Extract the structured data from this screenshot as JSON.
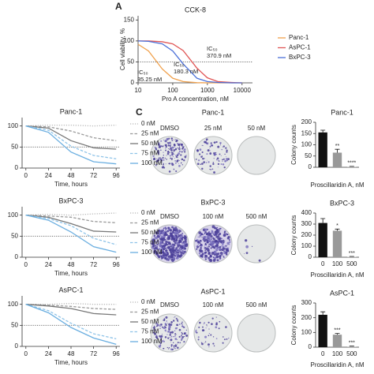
{
  "panel_labels": [
    "A",
    "C"
  ],
  "chart_data": [
    {
      "type": "line",
      "title": "CCK-8",
      "xlabel": "Pro A concentration, nM",
      "ylabel": "Cell viability, %",
      "xscale": "log",
      "x": [
        10,
        20,
        50,
        100,
        200,
        500,
        1000,
        2000,
        5000,
        10000
      ],
      "xlim": [
        10,
        20000
      ],
      "xticks": [
        10,
        100,
        1000,
        10000
      ],
      "ylim": [
        0,
        160
      ],
      "yticks": [
        0,
        50,
        100,
        150
      ],
      "reference_line": 50,
      "legend": "upper right",
      "series": [
        {
          "name": "Panc-1",
          "color": "#f0a04b",
          "style": "solid",
          "values": [
            92,
            76,
            33,
            11,
            3,
            0.5,
            0,
            0,
            0,
            0
          ]
        },
        {
          "name": "AsPC-1",
          "color": "#e05555",
          "style": "solid",
          "values": [
            100,
            100,
            98,
            93,
            77,
            35,
            12,
            3,
            1,
            0
          ]
        },
        {
          "name": "BxPC-3",
          "color": "#4a6fd8",
          "style": "solid",
          "values": [
            100,
            99,
            93,
            76,
            45,
            11,
            3,
            1,
            0,
            0
          ]
        }
      ],
      "annotations": [
        {
          "lines": [
            "IC₅₀",
            "370.9 nM"
          ],
          "color": "#e05555"
        },
        {
          "lines": [
            "IC₅₀",
            "180.3 nM"
          ],
          "color": "#4a6fd8"
        },
        {
          "lines": [
            "IC₅₀",
            "35.25 nM"
          ],
          "color": "#f0a04b"
        }
      ]
    },
    {
      "type": "line",
      "title": "Panc-1",
      "xlabel": "Time, hours",
      "x": [
        0,
        24,
        48,
        72,
        96
      ],
      "xlim": [
        -4,
        100
      ],
      "xticks": [
        0,
        24,
        48,
        72,
        96
      ],
      "ylim": [
        0,
        120
      ],
      "yticks": [
        0,
        50,
        100
      ],
      "reference_line": 50,
      "legend": "right",
      "series": [
        {
          "name": "0 nM",
          "color": "#b8b8b8",
          "style": "dotted",
          "values": [
            100,
            102,
            102,
            100,
            102
          ]
        },
        {
          "name": "25 nM",
          "color": "#9a9a9a",
          "style": "dashed",
          "values": [
            100,
            98,
            88,
            72,
            65
          ]
        },
        {
          "name": "50 nM",
          "color": "#777777",
          "style": "solid",
          "values": [
            100,
            95,
            65,
            48,
            45
          ]
        },
        {
          "name": "75 nM",
          "color": "#8ec3e8",
          "style": "dashed",
          "values": [
            100,
            90,
            52,
            30,
            22
          ]
        },
        {
          "name": "100 nM",
          "color": "#6aaee0",
          "style": "solid",
          "values": [
            100,
            85,
            38,
            15,
            10
          ]
        }
      ]
    },
    {
      "type": "line",
      "title": "BxPC-3",
      "xlabel": "Time, hours",
      "x": [
        0,
        24,
        48,
        72,
        96
      ],
      "xlim": [
        -4,
        100
      ],
      "xticks": [
        0,
        24,
        48,
        72,
        96
      ],
      "ylim": [
        0,
        120
      ],
      "yticks": [
        0,
        50,
        100
      ],
      "reference_line": 50,
      "legend": "right",
      "series": [
        {
          "name": "0 nM",
          "color": "#b8b8b8",
          "style": "dotted",
          "values": [
            100,
            102,
            100,
            103,
            105
          ]
        },
        {
          "name": "25 nM",
          "color": "#9a9a9a",
          "style": "dashed",
          "values": [
            100,
            98,
            95,
            85,
            82
          ]
        },
        {
          "name": "50 nM",
          "color": "#777777",
          "style": "solid",
          "values": [
            100,
            95,
            80,
            62,
            60
          ]
        },
        {
          "name": "75 nM",
          "color": "#8ec3e8",
          "style": "dashed",
          "values": [
            100,
            92,
            75,
            45,
            30
          ]
        },
        {
          "name": "100 nM",
          "color": "#6aaee0",
          "style": "solid",
          "values": [
            100,
            88,
            60,
            25,
            12
          ]
        }
      ]
    },
    {
      "type": "line",
      "title": "AsPC-1",
      "xlabel": "Time, hours",
      "x": [
        0,
        24,
        48,
        72,
        96
      ],
      "xlim": [
        -4,
        100
      ],
      "xticks": [
        0,
        24,
        48,
        72,
        96
      ],
      "ylim": [
        0,
        120
      ],
      "yticks": [
        0,
        50,
        100
      ],
      "reference_line": 50,
      "legend": "right",
      "series": [
        {
          "name": "0 nM",
          "color": "#b8b8b8",
          "style": "dotted",
          "values": [
            100,
            100,
            102,
            100,
            100
          ]
        },
        {
          "name": "25 nM",
          "color": "#9a9a9a",
          "style": "dashed",
          "values": [
            100,
            98,
            95,
            90,
            88
          ]
        },
        {
          "name": "50 nM",
          "color": "#777777",
          "style": "solid",
          "values": [
            100,
            96,
            90,
            78,
            75
          ]
        },
        {
          "name": "75 nM",
          "color": "#8ec3e8",
          "style": "dashed",
          "values": [
            100,
            85,
            55,
            30,
            18
          ]
        },
        {
          "name": "100 nM",
          "color": "#6aaee0",
          "style": "solid",
          "values": [
            100,
            80,
            45,
            20,
            5
          ]
        }
      ]
    },
    {
      "type": "bar",
      "title": "Panc-1",
      "xlabel": "Proscillaridin A, nM",
      "ylabel": "Colony counts",
      "values": [
        155,
        65,
        3
      ],
      "errors": [
        10,
        15,
        1
      ],
      "significance": [
        null,
        "**",
        "****"
      ],
      "colors": [
        "#111111",
        "#999999",
        "#cccccc"
      ],
      "ylim": [
        0,
        200
      ],
      "yticks": [
        0,
        50,
        100,
        150,
        200
      ]
    },
    {
      "type": "bar",
      "title": "BxPC-3",
      "xlabel": "Proscillaridin A, nM",
      "ylabel": "Colony counts",
      "categories": [
        "0",
        "100",
        "500"
      ],
      "values": [
        310,
        240,
        5
      ],
      "errors": [
        40,
        15,
        2
      ],
      "significance": [
        null,
        "*",
        "***"
      ],
      "colors": [
        "#111111",
        "#999999",
        "#cccccc"
      ],
      "ylim": [
        0,
        400
      ],
      "yticks": [
        0,
        100,
        200,
        300,
        400
      ]
    },
    {
      "type": "bar",
      "title": "AsPC-1",
      "xlabel": "Proscillaridin A, nM",
      "ylabel": "Colony counts",
      "categories": [
        "0",
        "100",
        "500"
      ],
      "values": [
        220,
        85,
        5
      ],
      "errors": [
        20,
        8,
        2
      ],
      "significance": [
        null,
        "***",
        "***"
      ],
      "colors": [
        "#111111",
        "#999999",
        "#cccccc"
      ],
      "ylim": [
        0,
        300
      ],
      "yticks": [
        0,
        100,
        200,
        300
      ]
    }
  ],
  "colony_images": [
    {
      "title": "Panc-1",
      "labels": [
        "DMSO",
        "25 nM",
        "50 nM"
      ]
    },
    {
      "title": "BxPC-3",
      "labels": [
        "DMSO",
        "100 nM",
        "500 nM"
      ]
    },
    {
      "title": "AsPC-1",
      "labels": [
        "DMSO",
        "100 nM",
        "500 nM"
      ]
    }
  ]
}
